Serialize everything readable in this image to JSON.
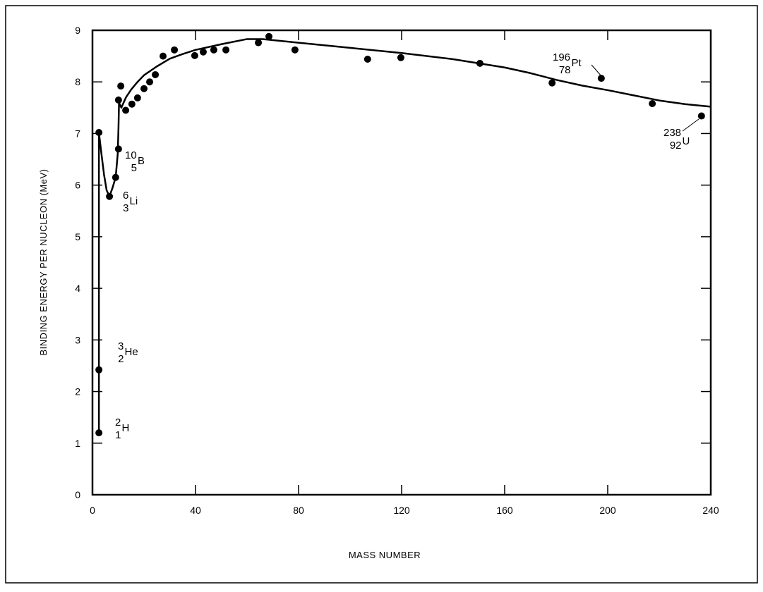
{
  "chart_data": {
    "type": "scatter",
    "title": "",
    "xlabel": "MASS NUMBER",
    "ylabel": "BINDING ENERGY PER NUCLEON (MeV)",
    "xlim": [
      0,
      240
    ],
    "ylim": [
      0,
      9
    ],
    "xticks": [
      0,
      40,
      80,
      120,
      160,
      200,
      240
    ],
    "yticks": [
      0,
      1,
      2,
      3,
      4,
      5,
      6,
      7,
      8,
      9
    ],
    "grid": false,
    "legend": "none",
    "colors": {
      "marks": "#000000",
      "background": "#ffffff"
    },
    "points": [
      [
        2.5,
        1.2
      ],
      [
        2.5,
        2.42
      ],
      [
        2.5,
        7.02
      ],
      [
        6.6,
        5.78
      ],
      [
        9,
        6.15
      ],
      [
        10.1,
        6.7
      ],
      [
        10.1,
        7.65
      ],
      [
        11,
        7.92
      ],
      [
        12.9,
        7.45
      ],
      [
        15.3,
        7.57
      ],
      [
        17.5,
        7.69
      ],
      [
        20,
        7.87
      ],
      [
        22.2,
        8.0
      ],
      [
        24.4,
        8.14
      ],
      [
        27.4,
        8.5
      ],
      [
        31.8,
        8.62
      ],
      [
        39.7,
        8.51
      ],
      [
        43,
        8.58
      ],
      [
        47.1,
        8.62
      ],
      [
        51.8,
        8.62
      ],
      [
        64.4,
        8.76
      ],
      [
        68.5,
        8.88
      ],
      [
        78.6,
        8.62
      ],
      [
        106.8,
        8.44
      ],
      [
        119.7,
        8.47
      ],
      [
        150.4,
        8.36
      ],
      [
        178.4,
        7.98
      ],
      [
        197.5,
        8.07
      ],
      [
        217.3,
        7.58
      ],
      [
        236.4,
        7.34
      ]
    ],
    "curve": [
      [
        2.5,
        1.2
      ],
      [
        2.5,
        7.02
      ],
      [
        3.5,
        6.6
      ],
      [
        4.5,
        6.2
      ],
      [
        5.5,
        5.9
      ],
      [
        6.6,
        5.78
      ],
      [
        7.8,
        5.95
      ],
      [
        9,
        6.15
      ],
      [
        9.8,
        6.6
      ],
      [
        10.1,
        7.1
      ],
      [
        10.3,
        7.6
      ],
      [
        11.2,
        7.5
      ],
      [
        13,
        7.7
      ],
      [
        15,
        7.85
      ],
      [
        17.5,
        8.0
      ],
      [
        20,
        8.13
      ],
      [
        25,
        8.3
      ],
      [
        30,
        8.45
      ],
      [
        35,
        8.54
      ],
      [
        40,
        8.62
      ],
      [
        50,
        8.73
      ],
      [
        60,
        8.83
      ],
      [
        66,
        8.83
      ],
      [
        80,
        8.76
      ],
      [
        100,
        8.66
      ],
      [
        120,
        8.56
      ],
      [
        140,
        8.44
      ],
      [
        150,
        8.36
      ],
      [
        160,
        8.28
      ],
      [
        170,
        8.17
      ],
      [
        180,
        8.04
      ],
      [
        190,
        7.93
      ],
      [
        200,
        7.84
      ],
      [
        210,
        7.74
      ],
      [
        220,
        7.64
      ],
      [
        230,
        7.57
      ],
      [
        240,
        7.52
      ]
    ],
    "annotations": [
      {
        "mass": "2",
        "z": "1",
        "symbol": "H"
      },
      {
        "mass": "3",
        "z": "2",
        "symbol": "He"
      },
      {
        "mass": "6",
        "z": "3",
        "symbol": "Li"
      },
      {
        "mass": "10",
        "z": "5",
        "symbol": "B"
      },
      {
        "mass": "196",
        "z": "78",
        "symbol": "Pt"
      },
      {
        "mass": "238",
        "z": "92",
        "symbol": "U"
      }
    ]
  }
}
